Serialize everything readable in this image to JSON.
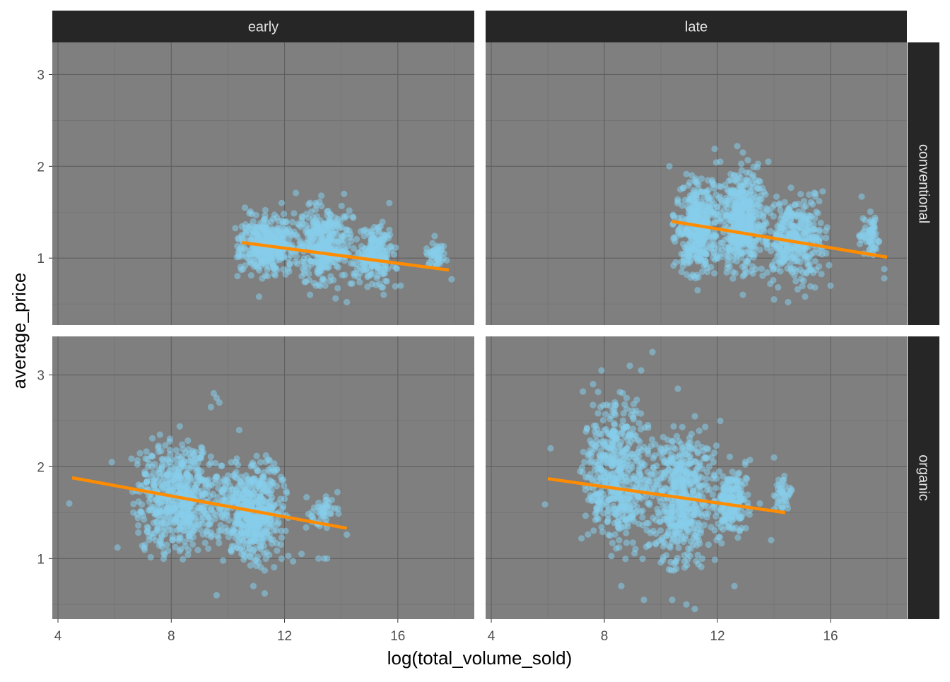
{
  "chart_data": {
    "type": "scatter",
    "xlabel": "log(total_volume_sold)",
    "ylabel": "average_price",
    "column_facets": [
      "early",
      "late"
    ],
    "row_facets": [
      "conventional",
      "organic"
    ],
    "xlim": [
      3.8,
      18.7
    ],
    "x_ticks": [
      4,
      8,
      12,
      16
    ],
    "x_tick_labels": [
      "4",
      "8",
      "12",
      "16"
    ],
    "y_ticks": [
      1,
      2,
      3
    ],
    "y_tick_labels": [
      "1",
      "2",
      "3"
    ],
    "rows_ylim": [
      [
        0.27,
        3.35
      ],
      [
        0.34,
        3.42
      ]
    ],
    "grid": true,
    "panel_background": "#7f7f7f",
    "strip_background": "#262626",
    "strip_text_color": "#e6e6e6",
    "point_color": "#87ceeb",
    "fit_line_color": "#ff8c00",
    "panels": [
      {
        "column": "early",
        "row": "conventional",
        "fit_line": [
          [
            10.5,
            1.17
          ],
          [
            17.8,
            0.87
          ]
        ],
        "clusters": [
          {
            "x": [
              10.4,
              12.3
            ],
            "y": [
              0.82,
              1.48
            ],
            "n": 360
          },
          {
            "x": [
              12.3,
              14.4
            ],
            "y": [
              0.72,
              1.55
            ],
            "n": 360
          },
          {
            "x": [
              14.4,
              15.9
            ],
            "y": [
              0.72,
              1.35
            ],
            "n": 200
          },
          {
            "x": [
              17.0,
              17.7
            ],
            "y": [
              0.92,
              1.15
            ],
            "n": 45
          }
        ],
        "points": [
          [
            12.4,
            1.71
          ],
          [
            13.3,
            1.68
          ],
          [
            14.1,
            1.7
          ],
          [
            15.7,
            1.6
          ],
          [
            14.2,
            0.52
          ],
          [
            13.8,
            0.56
          ],
          [
            11.1,
            0.58
          ],
          [
            12.9,
            0.6
          ],
          [
            15.5,
            0.6
          ],
          [
            17.3,
            1.24
          ],
          [
            17.9,
            0.77
          ],
          [
            16.1,
            0.7
          ],
          [
            13.1,
            1.6
          ],
          [
            11.9,
            1.6
          ],
          [
            10.6,
            1.55
          ]
        ]
      },
      {
        "column": "late",
        "row": "conventional",
        "fit_line": [
          [
            10.4,
            1.4
          ],
          [
            18.0,
            1.01
          ]
        ],
        "clusters": [
          {
            "x": [
              10.5,
              12.0
            ],
            "y": [
              0.85,
              1.85
            ],
            "n": 400
          },
          {
            "x": [
              12.0,
              13.6
            ],
            "y": [
              0.8,
              2.0
            ],
            "n": 450
          },
          {
            "x": [
              13.6,
              15.8
            ],
            "y": [
              0.72,
              1.7
            ],
            "n": 350
          },
          {
            "x": [
              17.0,
              17.8
            ],
            "y": [
              1.0,
              1.5
            ],
            "n": 60
          }
        ],
        "points": [
          [
            12.7,
            2.22
          ],
          [
            11.9,
            2.19
          ],
          [
            10.3,
            2.0
          ],
          [
            13.8,
            2.05
          ],
          [
            15.6,
            1.62
          ],
          [
            17.1,
            1.67
          ],
          [
            17.9,
            0.78
          ],
          [
            17.9,
            0.88
          ],
          [
            14.5,
            0.52
          ],
          [
            14.0,
            0.55
          ],
          [
            12.9,
            0.6
          ],
          [
            15.1,
            0.58
          ],
          [
            16.0,
            0.7
          ],
          [
            11.3,
            0.65
          ],
          [
            10.6,
            1.62
          ],
          [
            12.1,
            2.05
          ],
          [
            12.9,
            2.15
          ]
        ]
      },
      {
        "column": "early",
        "row": "organic",
        "fit_line": [
          [
            4.5,
            1.88
          ],
          [
            14.2,
            1.33
          ]
        ],
        "clusters": [
          {
            "x": [
              6.8,
              9.8
            ],
            "y": [
              1.05,
              2.25
            ],
            "n": 600
          },
          {
            "x": [
              9.8,
              12.0
            ],
            "y": [
              0.95,
              2.05
            ],
            "n": 500
          },
          {
            "x": [
              12.8,
              13.9
            ],
            "y": [
              1.3,
              1.7
            ],
            "n": 50
          }
        ],
        "points": [
          [
            4.4,
            1.6
          ],
          [
            6.1,
            1.12
          ],
          [
            5.9,
            2.05
          ],
          [
            9.6,
            2.75
          ],
          [
            9.5,
            2.8
          ],
          [
            9.7,
            2.7
          ],
          [
            9.4,
            2.65
          ],
          [
            9.6,
            0.6
          ],
          [
            10.9,
            0.7
          ],
          [
            11.3,
            0.62
          ],
          [
            13.2,
            1.0
          ],
          [
            13.5,
            1.0
          ],
          [
            13.4,
            1.0
          ],
          [
            14.2,
            1.26
          ],
          [
            8.3,
            2.44
          ],
          [
            10.4,
            2.4
          ],
          [
            7.6,
            2.35
          ],
          [
            12.3,
            0.97
          ],
          [
            12.6,
            1.05
          ]
        ]
      },
      {
        "column": "late",
        "row": "organic",
        "fit_line": [
          [
            6.0,
            1.87
          ],
          [
            14.4,
            1.5
          ]
        ],
        "clusters": [
          {
            "x": [
              7.3,
              9.6
            ],
            "y": [
              1.1,
              2.7
            ],
            "n": 500
          },
          {
            "x": [
              9.6,
              11.8
            ],
            "y": [
              0.9,
              2.4
            ],
            "n": 500
          },
          {
            "x": [
              11.8,
              13.2
            ],
            "y": [
              1.2,
              2.05
            ],
            "n": 200
          },
          {
            "x": [
              14.0,
              14.6
            ],
            "y": [
              1.5,
              1.9
            ],
            "n": 40
          }
        ],
        "points": [
          [
            9.7,
            3.25
          ],
          [
            8.9,
            3.1
          ],
          [
            9.3,
            3.05
          ],
          [
            7.9,
            3.05
          ],
          [
            5.9,
            1.59
          ],
          [
            6.1,
            2.2
          ],
          [
            11.2,
            0.45
          ],
          [
            10.9,
            0.5
          ],
          [
            10.4,
            0.55
          ],
          [
            9.4,
            0.55
          ],
          [
            8.6,
            0.7
          ],
          [
            12.6,
            0.7
          ],
          [
            13.5,
            1.6
          ],
          [
            14.3,
            1.55
          ],
          [
            14.0,
            2.1
          ],
          [
            12.1,
            2.5
          ],
          [
            11.2,
            2.55
          ],
          [
            13.9,
            1.2
          ],
          [
            7.6,
            2.9
          ],
          [
            10.6,
            2.85
          ]
        ]
      }
    ]
  }
}
